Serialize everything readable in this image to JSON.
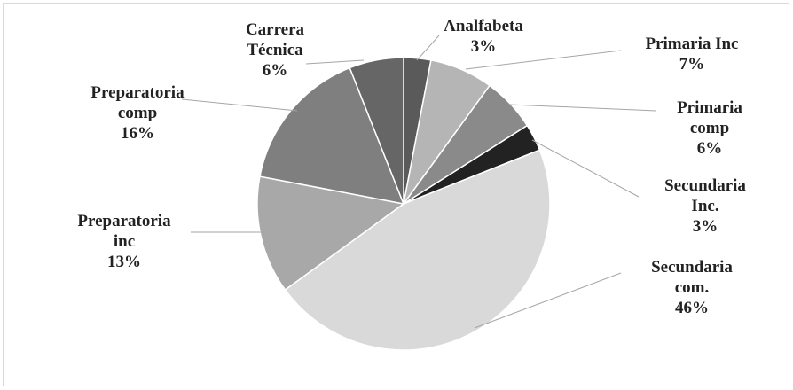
{
  "chart_data": {
    "type": "pie",
    "categories": [
      "Analfabeta",
      "Primaria Inc",
      "Primaria comp",
      "Secundaria Inc.",
      "Secundaria com.",
      "Preparatoria inc",
      "Preparatoria comp",
      "Carrera Técnica"
    ],
    "values": [
      3,
      7,
      6,
      3,
      46,
      13,
      16,
      6
    ],
    "value_labels": [
      "3%",
      "7%",
      "6%",
      "3%",
      "46%",
      "13%",
      "16%",
      "6%"
    ],
    "colors": [
      "#5a5a5a",
      "#b5b5b5",
      "#8a8a8a",
      "#222222",
      "#d9d9d9",
      "#a8a8a8",
      "#7f7f7f",
      "#666666"
    ]
  }
}
